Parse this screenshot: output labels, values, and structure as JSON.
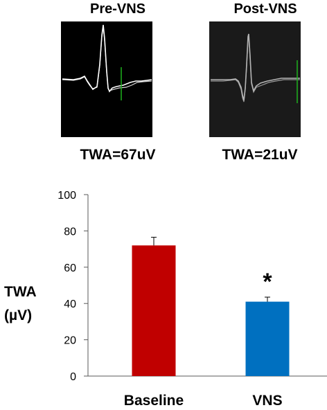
{
  "panels": [
    {
      "title": "Pre-VNS",
      "value_label": "TWA=67uV",
      "background": "#000000",
      "trace_color": "#ffffff",
      "marker_color": "#1db31d"
    },
    {
      "title": "Post-VNS",
      "value_label": "TWA=21uV",
      "background": "#1a1a1a",
      "trace_color": "#b3b3b3",
      "marker_color": "#1db31d"
    }
  ],
  "chart_data": {
    "type": "bar",
    "categories": [
      "Baseline",
      "VNS"
    ],
    "values": [
      72,
      41
    ],
    "errors": [
      4.5,
      2.5
    ],
    "colors": [
      "#c00000",
      "#0070c0"
    ],
    "ylabel_lines": [
      "TWA",
      "(µV)"
    ],
    "ylim": [
      0,
      100
    ],
    "yticks": [
      "0",
      "20",
      "40",
      "60",
      "80",
      "100"
    ],
    "annotation": "*",
    "grid": false
  }
}
